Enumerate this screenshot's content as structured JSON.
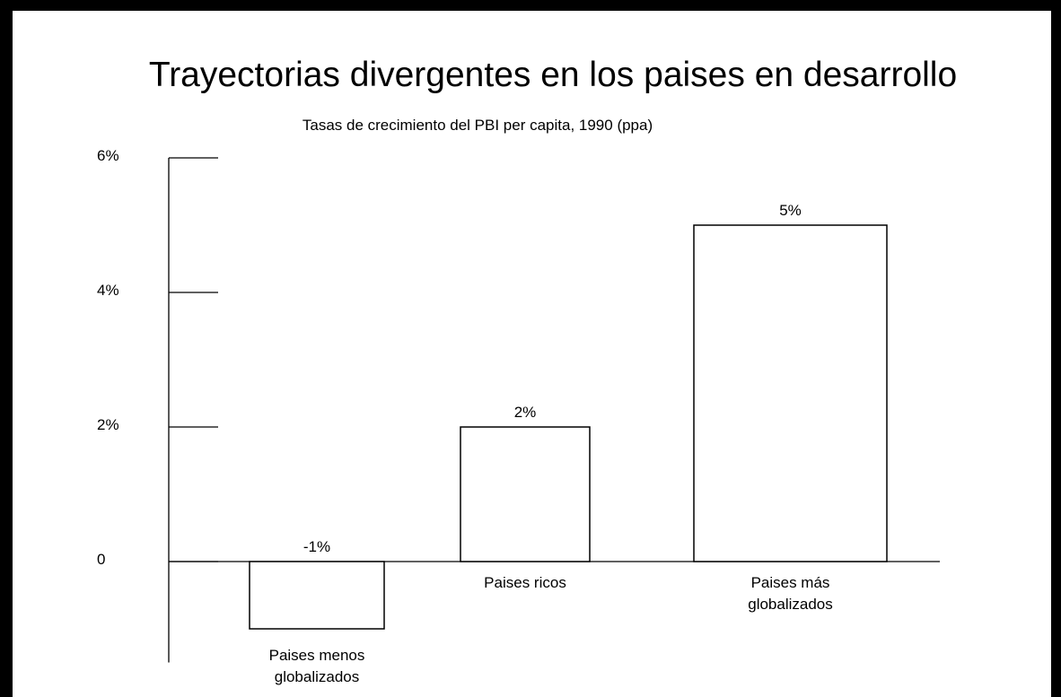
{
  "chart_data": {
    "type": "bar",
    "title": "Trayectorias divergentes en los paises en desarrollo",
    "subtitle": "Tasas de crecimiento del PBI per capita, 1990 (ppa)",
    "categories": [
      "Paises menos\nglobalizados",
      "Paises ricos",
      "Paises más\nglobalizados"
    ],
    "values": [
      -1,
      2,
      5
    ],
    "value_labels": [
      "-1%",
      "2%",
      "5%"
    ],
    "color": "#ffffff",
    "ylim": [
      -1.5,
      6
    ],
    "yticks": [
      0,
      {
        "value": 2,
        "label": "2%"
      },
      {
        "value": 4,
        "label": "4%"
      },
      {
        "value": 6,
        "label": "6%"
      }
    ]
  }
}
